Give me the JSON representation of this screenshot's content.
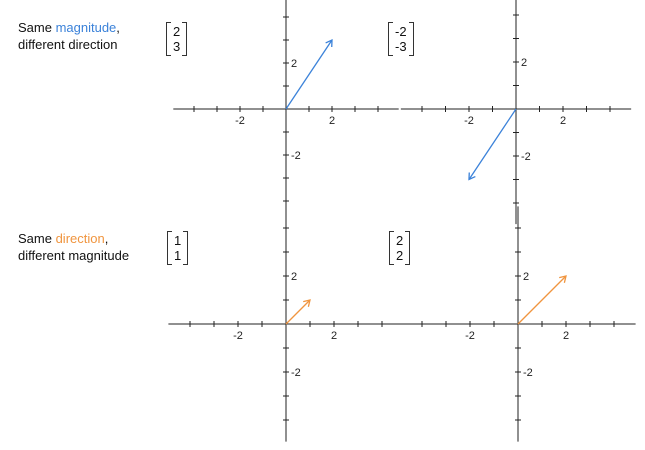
{
  "rows": [
    {
      "label_prefix": "Same ",
      "label_highlight": "magnitude",
      "label_suffix": ",",
      "label_line2": "different direction",
      "highlight_color": "#3b82d9"
    },
    {
      "label_prefix": "Same ",
      "label_highlight": "direction",
      "label_suffix": ",",
      "label_line2": "different magnitude",
      "highlight_color": "#f0953f"
    }
  ],
  "plots": [
    {
      "vector": [
        "2",
        "3"
      ],
      "x": 2,
      "y": 3,
      "color": "#3b82d9",
      "x_ticks": [
        "-2",
        "2"
      ],
      "y_ticks": [
        "2",
        "-2"
      ]
    },
    {
      "vector": [
        "-2",
        "-3"
      ],
      "x": -2,
      "y": -3,
      "color": "#3b82d9",
      "x_ticks": [
        "-2",
        "2"
      ],
      "y_ticks": [
        "2",
        "-2"
      ]
    },
    {
      "vector": [
        "1",
        "1"
      ],
      "x": 1,
      "y": 1,
      "color": "#f0953f",
      "x_ticks": [
        "-2",
        "2"
      ],
      "y_ticks": [
        "2",
        "-2"
      ]
    },
    {
      "vector": [
        "2",
        "2"
      ],
      "x": 2,
      "y": 2,
      "color": "#f0953f",
      "x_ticks": [
        "-2",
        "2"
      ],
      "y_ticks": [
        "2",
        "-2"
      ]
    }
  ]
}
